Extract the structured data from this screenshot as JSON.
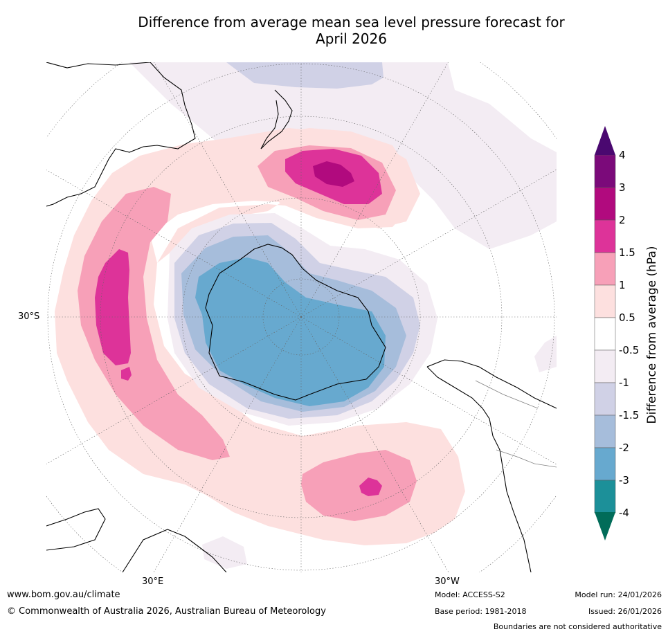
{
  "title_line1": "Difference from average mean sea level pressure forecast for",
  "title_line2": "April 2026",
  "map": {
    "projection": "south-polar-stereographic",
    "lat_label": "30°S",
    "lon_labels": {
      "east": "30°E",
      "west": "30°W"
    },
    "ocean_color": "#ffffff",
    "coast_color": "#000000",
    "border_color": "#808080"
  },
  "colorbar": {
    "title": "Difference from average (hPa)",
    "ticks": [
      "4",
      "3",
      "2",
      "1.5",
      "1",
      "0.5",
      "-0.5",
      "-1",
      "-1.5",
      "-2",
      "-3",
      "-4"
    ],
    "bins": [
      {
        "range": "3 to 4",
        "color": "#7b0a7a"
      },
      {
        "range": "2 to 3",
        "color": "#b10a7e"
      },
      {
        "range": "1.5 to 2",
        "color": "#dd3399"
      },
      {
        "range": "1 to 1.5",
        "color": "#f7a0b8"
      },
      {
        "range": "0.5 to 1",
        "color": "#fde0df"
      },
      {
        "range": "-0.5 to 0.5",
        "color": "#ffffff"
      },
      {
        "range": "-1 to -0.5",
        "color": "#f3ecf3"
      },
      {
        "range": "-1.5 to -1",
        "color": "#d0d1e6"
      },
      {
        "range": "-2 to -1.5",
        "color": "#a6bddb"
      },
      {
        "range": "-3 to -2",
        "color": "#67a9cf"
      },
      {
        "range": "-4 to -3",
        "color": "#1c9099"
      }
    ],
    "over_color": "#4a0870",
    "under_color": "#016c59"
  },
  "footer": {
    "website": "www.bom.gov.au/climate",
    "copyright": "© Commonwealth of Australia 2026, Australian Bureau of Meteorology",
    "model": "Model: ACCESS-S2",
    "base_period": "Base period: 1981-2018",
    "model_run": "Model run: 24/01/2026",
    "issued": "Issued: 26/01/2026",
    "disclaimer": "Boundaries are not considered authoritative"
  }
}
